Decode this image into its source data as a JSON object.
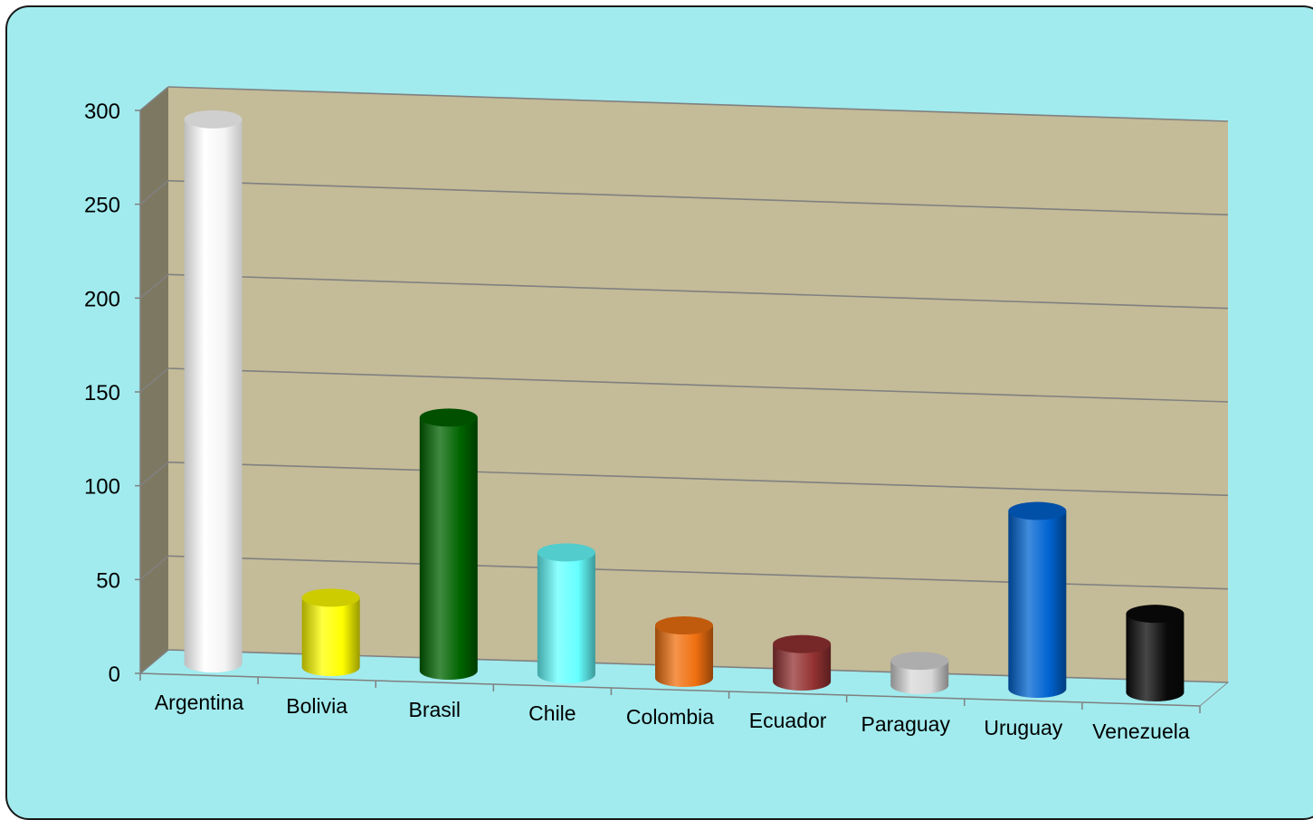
{
  "chart_data": {
    "type": "bar",
    "style": "3d-cylinder",
    "categories": [
      "Argentina",
      "Bolivia",
      "Brasil",
      "Chile",
      "Colombia",
      "Ecuador",
      "Paraguay",
      "Uruguay",
      "Venezuela"
    ],
    "values": [
      290,
      37,
      135,
      65,
      28,
      20,
      13,
      95,
      42
    ],
    "colors": [
      "#ffffff",
      "#ffff00",
      "#006400",
      "#66ffff",
      "#f07010",
      "#943232",
      "#d8d8d8",
      "#0064d2",
      "#0a0a0a"
    ],
    "ylim": [
      0,
      300
    ],
    "yticks": [
      0,
      50,
      100,
      150,
      200,
      250,
      300
    ],
    "grid": true,
    "legend": "none",
    "wall_color": "#c4bb98",
    "side_wall_color": "#7d7861",
    "floor_color": "#a1ebee",
    "background_color": "#a1ebee"
  }
}
